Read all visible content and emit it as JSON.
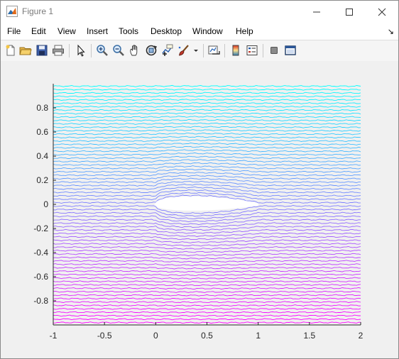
{
  "window": {
    "title": "Figure 1",
    "controls": [
      "minimize-icon",
      "maximize-icon",
      "close-icon"
    ]
  },
  "menubar": {
    "items": [
      "File",
      "Edit",
      "View",
      "Insert",
      "Tools",
      "Desktop",
      "Window",
      "Help"
    ],
    "overflow": "↘"
  },
  "toolbar": {
    "icons": [
      "new-figure-icon",
      "open-file-icon",
      "save-icon",
      "print-icon",
      "pointer-icon",
      "zoom-in-icon",
      "zoom-out-icon",
      "pan-icon",
      "rotate-3d-icon",
      "data-cursor-icon",
      "brush-icon",
      "link-plot-icon",
      "colorbar-icon",
      "legend-icon",
      "hide-plot-tools-icon",
      "show-plot-tools-icon"
    ]
  },
  "chart_data": {
    "type": "line",
    "title": "",
    "xlabel": "",
    "ylabel": "",
    "xlim": [
      -1,
      2
    ],
    "ylim": [
      -1,
      1
    ],
    "xticks": [
      "-1",
      "-0.5",
      "0",
      "0.5",
      "1",
      "1.5",
      "2"
    ],
    "xtick_values": [
      -1,
      -0.5,
      0,
      0.5,
      1,
      1.5,
      2
    ],
    "yticks": [
      "0.8",
      "0.6",
      "0.4",
      "0.2",
      "0",
      "-0.2",
      "-0.4",
      "-0.6",
      "-0.8"
    ],
    "ytick_values": [
      0.8,
      0.6,
      0.4,
      0.2,
      0,
      -0.2,
      -0.4,
      -0.6,
      -0.8
    ],
    "streamlines": {
      "count": 70,
      "y_start": 0.98,
      "y_end": -0.98,
      "x_range": [
        -1,
        2
      ],
      "colormap": [
        "#00ffff",
        "#ff00ff"
      ]
    },
    "obstacle": {
      "shape": "airfoil",
      "x_leading": 0.0,
      "x_trailing": 1.0,
      "max_thickness_y": 0.06,
      "fill": "#ffffff"
    },
    "grid": false,
    "legend": "none"
  }
}
